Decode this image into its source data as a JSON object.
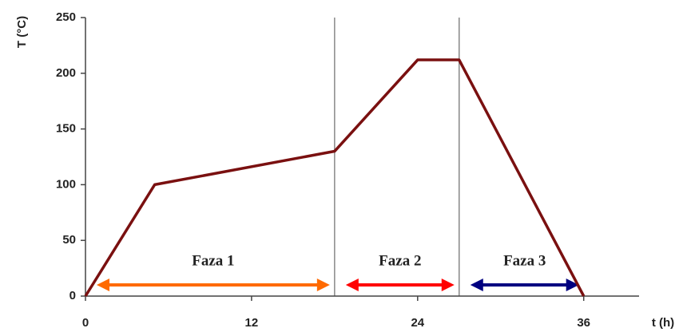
{
  "chart_data": {
    "type": "line",
    "xlabel": "t (h)",
    "ylabel": "T (°C)",
    "x": [
      0,
      5,
      18,
      24,
      27,
      36
    ],
    "series": [
      {
        "name": "T",
        "color": "#7a1010",
        "values": [
          0,
          100,
          130,
          212,
          212,
          0
        ]
      }
    ],
    "xlim": [
      0,
      40
    ],
    "xticks": [
      0,
      12,
      24,
      36
    ],
    "ylim": [
      0,
      250
    ],
    "yticks": [
      0,
      50,
      100,
      150,
      200,
      250
    ],
    "vlines": [
      18,
      27
    ],
    "phases": [
      {
        "label": "Faza 1",
        "x": [
          0,
          18
        ],
        "color": "#ff6a00"
      },
      {
        "label": "Faza 2",
        "x": [
          18,
          27
        ],
        "color": "#ff0000"
      },
      {
        "label": "Faza 3",
        "x": [
          27,
          36
        ],
        "color": "#000080"
      }
    ]
  }
}
